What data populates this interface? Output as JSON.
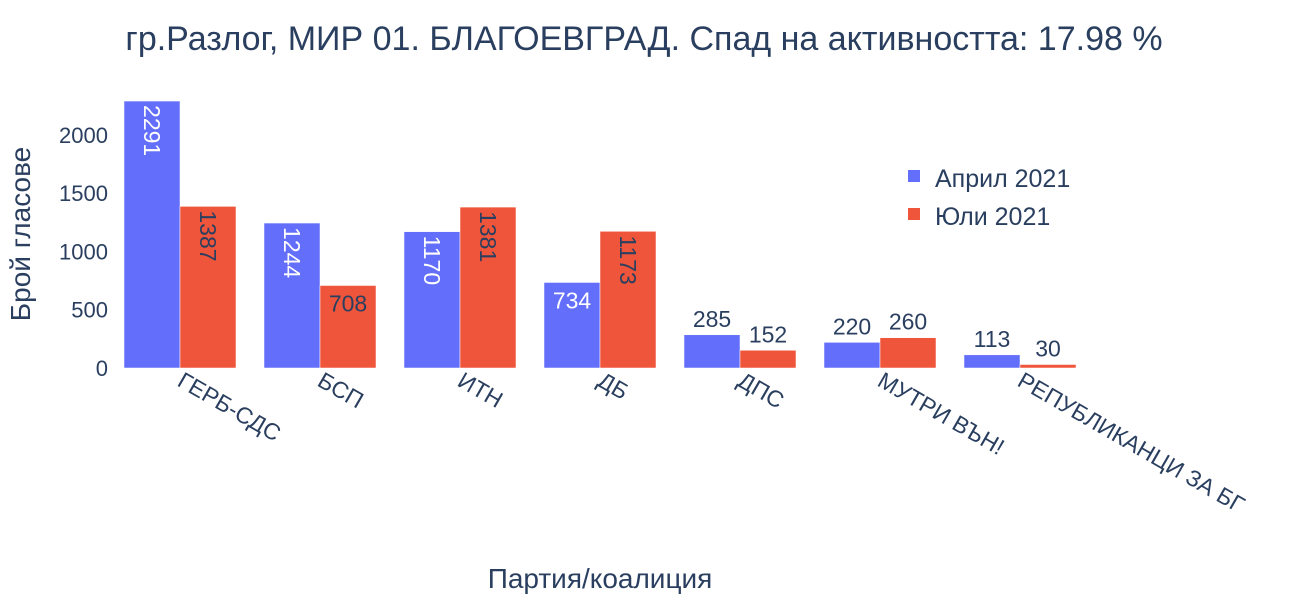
{
  "chart_data": {
    "type": "bar",
    "title": "гр.Разлог, МИР 01. БЛАГОЕВГРАД. Спад на активността: 17.98 %",
    "xlabel": "Партия/коалиция",
    "ylabel": "Брой гласове",
    "ylim": [
      0,
      2300
    ],
    "yticks": [
      0,
      500,
      1000,
      1500,
      2000
    ],
    "categories": [
      "ГЕРБ-СДС",
      "БСП",
      "ИТН",
      "ДБ",
      "ДПС",
      "МУТРИ ВЪН!",
      "РЕПУБЛИКАНЦИ ЗА БГ"
    ],
    "series": [
      {
        "name": "Април 2021",
        "color": "#636efa",
        "values": [
          2291,
          1244,
          1170,
          734,
          285,
          220,
          113
        ]
      },
      {
        "name": "Юли 2021",
        "color": "#ef553b",
        "values": [
          1387,
          708,
          1381,
          1173,
          152,
          260,
          30
        ]
      }
    ],
    "legend": "top-right",
    "grid": false
  }
}
